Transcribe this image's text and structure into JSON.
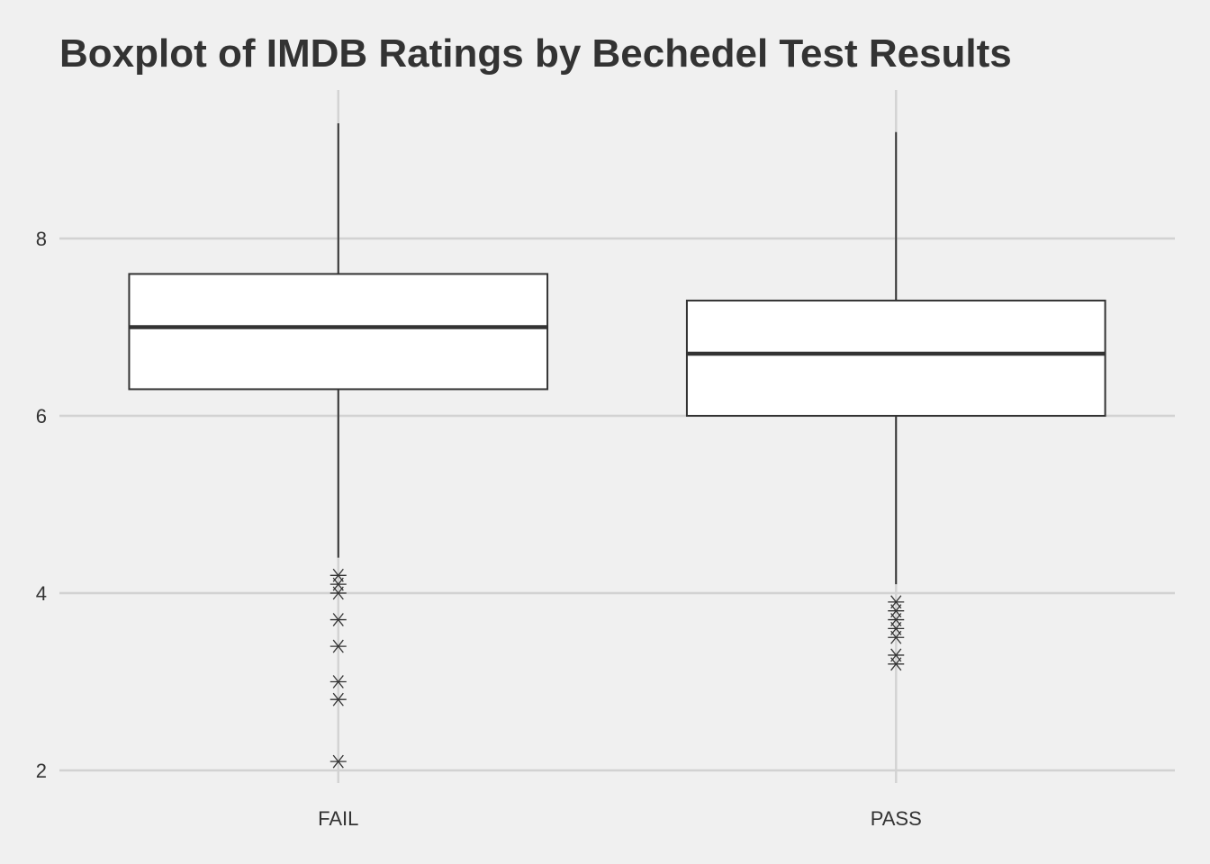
{
  "chart_data": {
    "type": "boxplot",
    "title": "Boxplot of IMDB Ratings by Bechedel Test Results",
    "xlabel": "",
    "ylabel": "",
    "categories": [
      "FAIL",
      "PASS"
    ],
    "ylim": [
      1.9,
      9.8
    ],
    "yticks": [
      2,
      4,
      6,
      8
    ],
    "grid": true,
    "legend": "none",
    "boxes": [
      {
        "category": "FAIL",
        "whisker_low": 4.4,
        "q1": 6.3,
        "median": 7.0,
        "q3": 7.6,
        "whisker_high": 9.3,
        "outliers": [
          4.2,
          4.1,
          4.0,
          3.7,
          3.4,
          3.0,
          2.8,
          2.1
        ]
      },
      {
        "category": "PASS",
        "whisker_low": 4.1,
        "q1": 6.0,
        "median": 6.7,
        "q3": 7.3,
        "whisker_high": 9.2,
        "outliers": [
          3.9,
          3.8,
          3.7,
          3.6,
          3.5,
          3.3,
          3.2
        ]
      }
    ],
    "colors": {
      "background": "#f0f0f0",
      "grid": "#d2d2d2",
      "box_fill": "#ffffff",
      "stroke": "#333333"
    }
  }
}
